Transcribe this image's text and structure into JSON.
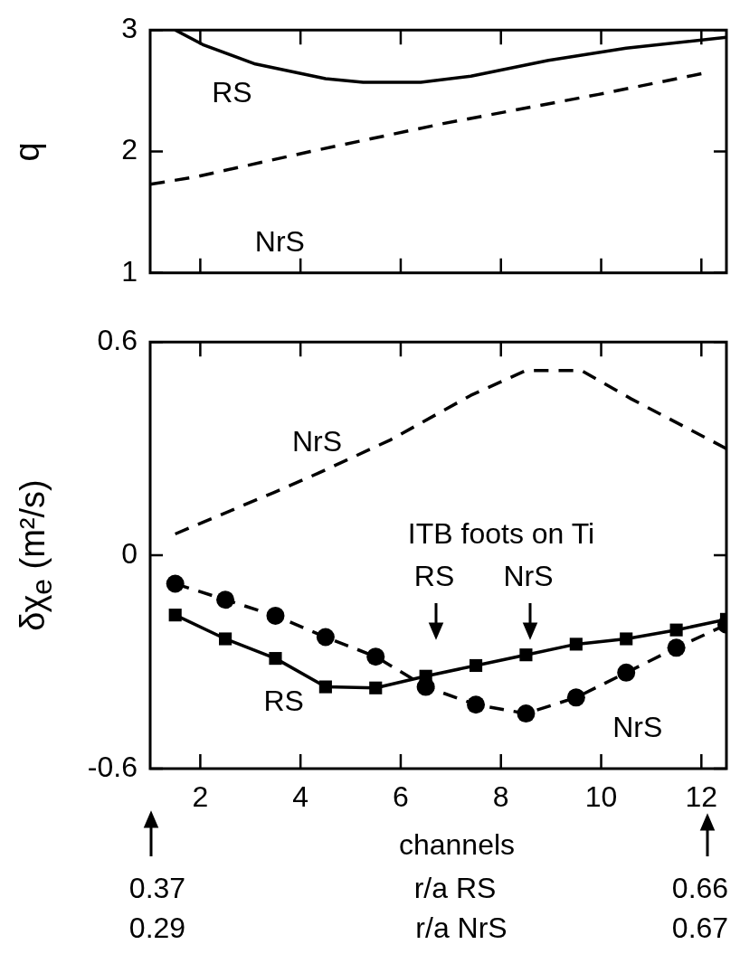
{
  "chart_data": [
    {
      "type": "line",
      "ylabel": "q",
      "xlim": [
        1,
        12.5
      ],
      "xticks": [
        2,
        4,
        6,
        8,
        10,
        12
      ],
      "ylim": [
        1,
        3
      ],
      "yticks": [
        1,
        2,
        3
      ],
      "tick_labels": "y",
      "grid": false,
      "series": [
        {
          "name": "RS",
          "color": "#000000",
          "line_style": "solid",
          "marker": "none",
          "x": [
            1.5,
            2.05,
            3.1,
            4.5,
            5.25,
            6.4,
            7.4,
            8.95,
            10.5,
            12.5
          ],
          "values": [
            3.0,
            2.88,
            2.72,
            2.6,
            2.57,
            2.57,
            2.62,
            2.75,
            2.85,
            2.94
          ]
        },
        {
          "name": "NrS",
          "color": "#000000",
          "line_style": "dashed",
          "marker": "none",
          "x": [
            1.0,
            1.9,
            4.2,
            6.85,
            9.95,
            12.0
          ],
          "values": [
            1.73,
            1.79,
            2.0,
            2.23,
            2.47,
            2.64
          ]
        }
      ]
    },
    {
      "type": "line",
      "ylabel": "δχ$_{e}$ (m²/s)",
      "xlabel": "channels",
      "xlim": [
        1,
        12.5
      ],
      "xticks": [
        2,
        4,
        6,
        8,
        10,
        12
      ],
      "ylim": [
        -0.6,
        0.6
      ],
      "yticks": [
        -0.6,
        0,
        0.6
      ],
      "grid": false,
      "series": [
        {
          "name": "NrS",
          "color": "#000000",
          "line_style": "dashed",
          "marker": "none",
          "x": [
            1.5,
            3.44,
            4.34,
            5.8,
            7.4,
            8.5,
            9.6,
            10.6,
            12.5
          ],
          "values": [
            0.06,
            0.175,
            0.23,
            0.325,
            0.45,
            0.52,
            0.52,
            0.44,
            0.3
          ]
        },
        {
          "name": "RS",
          "color": "#000000",
          "line_style": "solid",
          "marker": "square",
          "x": [
            1.5,
            2.5,
            3.5,
            4.5,
            5.5,
            6.5,
            7.5,
            8.5,
            9.5,
            10.5,
            11.5,
            12.5
          ],
          "values": [
            -0.168,
            -0.235,
            -0.29,
            -0.37,
            -0.373,
            -0.34,
            -0.31,
            -0.28,
            -0.25,
            -0.235,
            -0.21,
            -0.18
          ]
        },
        {
          "name": "NrS",
          "color": "#000000",
          "line_style": "dashed",
          "marker": "circle",
          "x": [
            1.5,
            2.5,
            3.5,
            4.5,
            5.5,
            6.5,
            7.5,
            8.5,
            9.5,
            10.5,
            11.5,
            12.5
          ],
          "values": [
            -0.08,
            -0.125,
            -0.17,
            -0.23,
            -0.285,
            -0.37,
            -0.42,
            -0.445,
            -0.4,
            -0.33,
            -0.26,
            -0.195
          ]
        }
      ],
      "annotations": [
        "ITB foots on Ti",
        "RS",
        "NrS",
        "r/a RS",
        "r/a NrS",
        "0.37",
        "0.29",
        "0.66",
        "0.67"
      ]
    }
  ]
}
